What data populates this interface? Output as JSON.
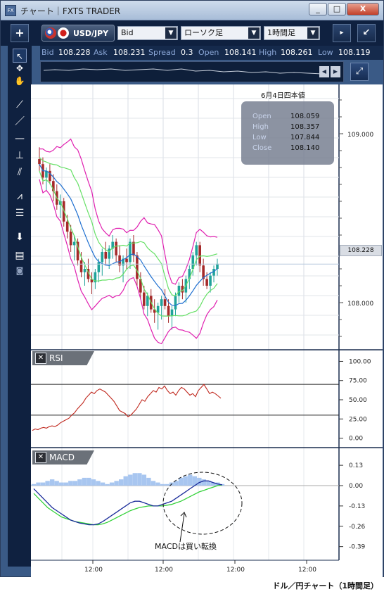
{
  "window": {
    "title": "チャート｜FXTS TRADER",
    "app_icon": "FX"
  },
  "window_controls": {
    "minimize": "_",
    "maximize": "□",
    "close": "X"
  },
  "toolbar": {
    "add_label": "+",
    "pair": "USD/JPY",
    "price_type": "Bid",
    "chart_type": "ローソク足",
    "timeframe": "1時間足"
  },
  "quote": {
    "bid_label": "Bid",
    "bid": "108.228",
    "ask_label": "Ask",
    "ask": "108.231",
    "spread_label": "Spread",
    "spread": "0.3",
    "open_label": "Open",
    "open": "108.141",
    "high_label": "High",
    "high": "108.261",
    "low_label": "Low",
    "low": "108.119"
  },
  "tools": [
    "arrow-cursor-icon",
    "crosshair-icon",
    "hand-icon",
    "trend-line-icon",
    "line-icon",
    "horizontal-line-icon",
    "vertical-line-icon",
    "channel-icon",
    "fan-icon",
    "fibonacci-icon",
    "download-icon",
    "list-icon",
    "camera-icon"
  ],
  "ohlc_box": {
    "date": "6月4日四本値",
    "open_label": "Open",
    "open": "108.059",
    "high_label": "High",
    "high": "108.357",
    "low_label": "Low",
    "low": "107.844",
    "close_label": "Close",
    "close": "108.140"
  },
  "current_price_tag": "108.228",
  "colors": {
    "candle_up": "#20a39a",
    "candle_down": "#a52a2a",
    "bollinger_outer": "#e020b0",
    "bollinger_inner": "#66e066",
    "ma": "#1e6fd0",
    "rsi": "#c0281e",
    "macd": "#1a2c9a",
    "signal": "#34d23a",
    "histogram": "#a8c6f0"
  },
  "panels": {
    "rsi_label": "RSI",
    "macd_label": "MACD"
  },
  "annotation": "MACDは買い転換",
  "caption": "ドル／円チャート（1時間足）",
  "chart_data": [
    {
      "type": "candlestick",
      "title": "",
      "yticks": [
        "109.000",
        "108.000"
      ],
      "xticks": [
        "12:00",
        "12:00",
        "12:00",
        "12:00"
      ],
      "ylim": [
        107.75,
        109.25
      ],
      "grid": true,
      "candles": [
        [
          108.85,
          108.92,
          108.78,
          108.82
        ],
        [
          108.82,
          108.86,
          108.7,
          108.74
        ],
        [
          108.74,
          108.8,
          108.66,
          108.78
        ],
        [
          108.78,
          108.82,
          108.7,
          108.72
        ],
        [
          108.72,
          108.76,
          108.6,
          108.66
        ],
        [
          108.66,
          108.7,
          108.55,
          108.58
        ],
        [
          108.58,
          108.64,
          108.5,
          108.6
        ],
        [
          108.6,
          108.62,
          108.45,
          108.48
        ],
        [
          108.48,
          108.52,
          108.38,
          108.42
        ],
        [
          108.42,
          108.46,
          108.3,
          108.34
        ],
        [
          108.34,
          108.4,
          108.25,
          108.36
        ],
        [
          108.36,
          108.38,
          108.22,
          108.25
        ],
        [
          108.25,
          108.3,
          108.15,
          108.18
        ],
        [
          108.18,
          108.24,
          108.1,
          108.2
        ],
        [
          108.2,
          108.26,
          108.12,
          108.14
        ],
        [
          108.14,
          108.18,
          108.05,
          108.12
        ],
        [
          108.12,
          108.2,
          108.08,
          108.18
        ],
        [
          108.18,
          108.26,
          108.12,
          108.24
        ],
        [
          108.24,
          108.32,
          108.16,
          108.3
        ],
        [
          108.3,
          108.36,
          108.22,
          108.26
        ],
        [
          108.26,
          108.34,
          108.2,
          108.32
        ],
        [
          108.32,
          108.4,
          108.26,
          108.36
        ],
        [
          108.36,
          108.38,
          108.24,
          108.28
        ],
        [
          108.28,
          108.34,
          108.18,
          108.22
        ],
        [
          108.22,
          108.28,
          108.12,
          108.26
        ],
        [
          108.26,
          108.32,
          108.2,
          108.24
        ],
        [
          108.24,
          108.38,
          108.2,
          108.36
        ],
        [
          108.36,
          108.4,
          108.24,
          108.28
        ],
        [
          108.28,
          108.3,
          108.1,
          108.14
        ],
        [
          108.14,
          108.18,
          108.02,
          108.06
        ],
        [
          108.06,
          108.1,
          107.96,
          107.98
        ],
        [
          107.98,
          108.06,
          107.92,
          108.04
        ],
        [
          108.04,
          108.08,
          107.94,
          107.96
        ],
        [
          107.96,
          108.02,
          107.88,
          107.94
        ],
        [
          107.94,
          108.0,
          107.84,
          107.98
        ],
        [
          107.98,
          108.04,
          107.9,
          108.02
        ],
        [
          108.02,
          108.08,
          107.96,
          107.98
        ],
        [
          107.98,
          108.02,
          107.88,
          107.92
        ],
        [
          107.92,
          107.98,
          107.84,
          107.96
        ],
        [
          107.96,
          108.06,
          107.92,
          108.04
        ],
        [
          108.04,
          108.12,
          108.0,
          108.1
        ],
        [
          108.1,
          108.14,
          108.02,
          108.06
        ],
        [
          108.06,
          108.16,
          108.0,
          108.14
        ],
        [
          108.14,
          108.22,
          108.08,
          108.2
        ],
        [
          108.2,
          108.3,
          108.16,
          108.28
        ],
        [
          108.28,
          108.36,
          108.22,
          108.34
        ],
        [
          108.34,
          108.36,
          108.18,
          108.22
        ],
        [
          108.22,
          108.26,
          108.1,
          108.14
        ],
        [
          108.14,
          108.18,
          108.08,
          108.1
        ],
        [
          108.1,
          108.18,
          108.06,
          108.16
        ],
        [
          108.16,
          108.22,
          108.12,
          108.2
        ],
        [
          108.2,
          108.26,
          108.16,
          108.23
        ]
      ]
    },
    {
      "type": "line",
      "title": "RSI",
      "yticks": [
        100.0,
        75.0,
        50.0,
        25.0,
        0.0
      ],
      "ylim": [
        -5,
        105
      ],
      "levels": [
        70,
        30
      ],
      "values": [
        10,
        12,
        11,
        13,
        14,
        13,
        15,
        16,
        15,
        17,
        20,
        22,
        24,
        26,
        30,
        33,
        38,
        42,
        46,
        52,
        56,
        60,
        58,
        62,
        64,
        62,
        60,
        56,
        52,
        48,
        42,
        36,
        34,
        32,
        28,
        30,
        34,
        38,
        44,
        50,
        48,
        54,
        58,
        62,
        60,
        66,
        64,
        68,
        62,
        58,
        60,
        56,
        62,
        66,
        64,
        60,
        56,
        58,
        54,
        62,
        66,
        70,
        64,
        58,
        60,
        58,
        55,
        52
      ]
    },
    {
      "type": "line",
      "title": "MACD",
      "yticks": [
        0.13,
        0.0,
        -0.13,
        -0.26,
        -0.39
      ],
      "ylim": [
        -0.45,
        0.18
      ],
      "series": [
        {
          "values": [
            -0.02,
            -0.05,
            -0.08,
            -0.11,
            -0.14,
            -0.16,
            -0.18,
            -0.2,
            -0.22,
            -0.23,
            -0.24,
            -0.245,
            -0.25,
            -0.25,
            -0.245,
            -0.23,
            -0.21,
            -0.19,
            -0.17,
            -0.15,
            -0.13,
            -0.11,
            -0.1,
            -0.1,
            -0.11,
            -0.12,
            -0.13,
            -0.13,
            -0.12,
            -0.11,
            -0.1,
            -0.08,
            -0.06,
            -0.04,
            -0.02,
            0.0,
            0.02,
            0.03,
            0.03,
            0.02,
            0.01,
            0.005
          ]
        },
        {
          "values": [
            -0.05,
            -0.08,
            -0.11,
            -0.14,
            -0.16,
            -0.18,
            -0.2,
            -0.21,
            -0.22,
            -0.23,
            -0.235,
            -0.24,
            -0.245,
            -0.25,
            -0.25,
            -0.245,
            -0.235,
            -0.22,
            -0.205,
            -0.19,
            -0.175,
            -0.16,
            -0.15,
            -0.14,
            -0.135,
            -0.13,
            -0.13,
            -0.13,
            -0.13,
            -0.125,
            -0.12,
            -0.11,
            -0.1,
            -0.085,
            -0.07,
            -0.055,
            -0.04,
            -0.03,
            -0.02,
            -0.01,
            0.0,
            0.005
          ]
        }
      ],
      "histogram": [
        0.01,
        0.02,
        0.02,
        0.03,
        0.04,
        0.03,
        0.02,
        0.02,
        0.03,
        0.03,
        0.04,
        0.05,
        0.05,
        0.04,
        0.03,
        0.02,
        0.01,
        0.02,
        0.03,
        0.04,
        0.06,
        0.07,
        0.08,
        0.08,
        0.07,
        0.05,
        0.03,
        0.02,
        0.01,
        0.01,
        0.02,
        0.03,
        0.05,
        0.06,
        0.07,
        0.06,
        0.05,
        0.04,
        0.03,
        0.02,
        0.02,
        0.01
      ]
    }
  ]
}
